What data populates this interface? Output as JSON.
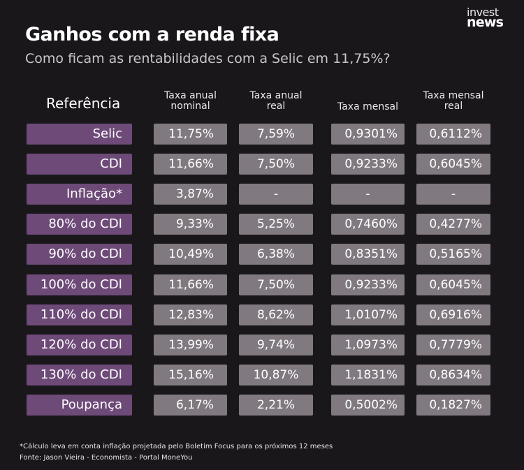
{
  "brand": {
    "line1": "invest",
    "line2": "news"
  },
  "title": "Ganhos com a renda fixa",
  "subtitle": "Como ficam as rentabilidades com a Selic em 11,75%?",
  "chart_data": {
    "type": "table",
    "columns": [
      {
        "label": "Referência"
      },
      {
        "line1": "Taxa anual",
        "line2": "nominal"
      },
      {
        "line1": "Taxa anual",
        "line2": "real"
      },
      {
        "line1": "Taxa mensal",
        "line2": ""
      },
      {
        "line1": "Taxa mensal",
        "line2": "real"
      }
    ],
    "rows": [
      {
        "ref": "Selic",
        "values": [
          "11,75%",
          "7,59%",
          "0,9301%",
          "0,6112%"
        ]
      },
      {
        "ref": "CDI",
        "values": [
          "11,66%",
          "7,50%",
          "0,9233%",
          "0,6045%"
        ]
      },
      {
        "ref": "Inflação*",
        "values": [
          "3,87%",
          "-",
          "-",
          "-"
        ]
      },
      {
        "ref": "80% do CDI",
        "values": [
          "9,33%",
          "5,25%",
          "0,7460%",
          "0,4277%"
        ]
      },
      {
        "ref": "90% do CDI",
        "values": [
          "10,49%",
          "6,38%",
          "0,8351%",
          "0,5165%"
        ]
      },
      {
        "ref": "100% do CDI",
        "values": [
          "11,66%",
          "7,50%",
          "0,9233%",
          "0,6045%"
        ]
      },
      {
        "ref": "110% do CDI",
        "values": [
          "12,83%",
          "8,62%",
          "1,0107%",
          "0,6916%"
        ]
      },
      {
        "ref": "120% do CDI",
        "values": [
          "13,99%",
          "9,74%",
          "1,0973%",
          "0,7779%"
        ]
      },
      {
        "ref": "130% do CDI",
        "values": [
          "15,16%",
          "10,87%",
          "1,1831%",
          "0,8634%"
        ]
      },
      {
        "ref": "Poupança",
        "values": [
          "6,17%",
          "2,21%",
          "0,5002%",
          "0,1827%"
        ]
      }
    ]
  },
  "footnotes": {
    "note": "*Cálculo leva em conta inflação projetada pelo Boletim Focus para os próximos 12 meses",
    "source": "Fonte: Jason Vieira - Economista - Portal MoneYou"
  },
  "colors": {
    "background": "#1a171b",
    "reference_cell": "#6d4a78",
    "value_cell": "#807a80"
  }
}
